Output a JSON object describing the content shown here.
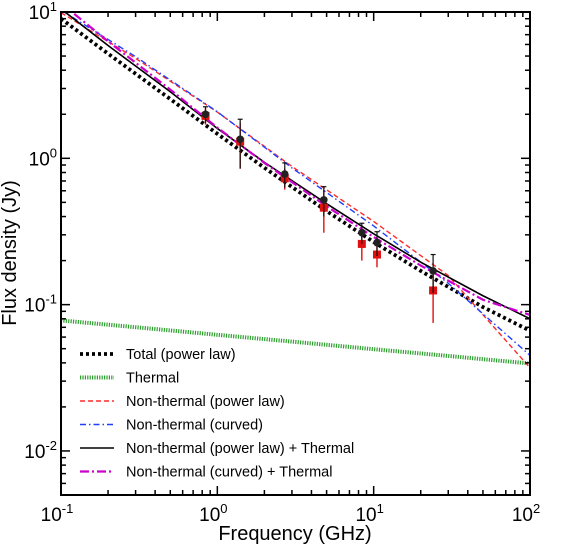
{
  "chart_data": {
    "type": "line",
    "xlabel": "Frequency (GHz)",
    "ylabel": "Flux density (Jy)",
    "x_scale": "log",
    "y_scale": "log",
    "xlim": [
      0.1,
      100
    ],
    "ylim": [
      0.005,
      10
    ],
    "x_ticks": [
      {
        "value": 0.1,
        "base": "10",
        "exp": "-1"
      },
      {
        "value": 1,
        "base": "10",
        "exp": "0"
      },
      {
        "value": 10,
        "base": "10",
        "exp": "1"
      },
      {
        "value": 100,
        "base": "10",
        "exp": "2"
      }
    ],
    "y_ticks": [
      {
        "value": 0.01,
        "base": "10",
        "exp": "-2"
      },
      {
        "value": 0.1,
        "base": "10",
        "exp": "-1"
      },
      {
        "value": 1,
        "base": "10",
        "exp": "0"
      },
      {
        "value": 10,
        "base": "10",
        "exp": "1"
      }
    ],
    "grid": false,
    "legend_position": "bottom-left",
    "series": [
      {
        "name": "Total (power law)",
        "color": "#000000",
        "style": "dotted-thick",
        "x": [
          0.1,
          0.2,
          0.5,
          1,
          2,
          5,
          10,
          20,
          50,
          100
        ],
        "y": [
          9.0,
          5.19,
          2.54,
          1.47,
          0.862,
          0.436,
          0.268,
          0.17,
          0.0963,
          0.0663
        ]
      },
      {
        "name": "Thermal",
        "color": "#2ca02c",
        "style": "dotted-green",
        "x": [
          0.1,
          0.3,
          1,
          3,
          10,
          30,
          100
        ],
        "y": [
          0.078,
          0.0701,
          0.0622,
          0.0559,
          0.0496,
          0.0446,
          0.0396
        ]
      },
      {
        "name": "Non-thermal (power law)",
        "color": "#ff2a2a",
        "style": "dashed",
        "x": [
          0.1,
          0.3,
          1,
          3,
          10,
          30,
          100
        ],
        "y": [
          9.9,
          4.82,
          2.07,
          0.88,
          0.37,
          0.158,
          0.037
        ]
      },
      {
        "name": "Non-thermal (curved)",
        "color": "#1f3fff",
        "style": "dashdot-fine",
        "x": [
          0.1,
          0.3,
          1,
          3,
          10,
          30,
          100
        ],
        "y": [
          10.3,
          4.95,
          2.08,
          0.86,
          0.345,
          0.14,
          0.045
        ]
      },
      {
        "name": "Non-thermal (power law) + Thermal",
        "color": "#000000",
        "style": "solid",
        "x": [
          0.1,
          0.2,
          0.5,
          1,
          2,
          5,
          10,
          20,
          50,
          100
        ],
        "y": [
          10.5,
          5.9,
          2.85,
          1.6,
          0.94,
          0.49,
          0.305,
          0.195,
          0.115,
          0.08
        ]
      },
      {
        "name": "Non-thermal (curved) + Thermal",
        "color": "#cc00cc",
        "style": "dashdot",
        "x": [
          0.1,
          0.2,
          0.5,
          1,
          2,
          5,
          10,
          20,
          50,
          100
        ],
        "y": [
          11.5,
          6.3,
          2.95,
          1.62,
          0.93,
          0.47,
          0.29,
          0.185,
          0.108,
          0.085
        ]
      }
    ],
    "points_black": [
      {
        "x": 0.84,
        "y": 2.0,
        "err": 0.25
      },
      {
        "x": 1.4,
        "y": 1.35,
        "err": 0.5
      },
      {
        "x": 2.7,
        "y": 0.78,
        "err": 0.15
      },
      {
        "x": 4.8,
        "y": 0.52,
        "err": 0.12
      },
      {
        "x": 8.4,
        "y": 0.31,
        "err": 0.05
      },
      {
        "x": 10.5,
        "y": 0.265,
        "err": 0.05
      },
      {
        "x": 24,
        "y": 0.17,
        "err": 0.05
      }
    ],
    "points_red": [
      {
        "x": 0.84,
        "y": 1.95,
        "err": 0.25
      },
      {
        "x": 1.4,
        "y": 1.3,
        "err": 0.45
      },
      {
        "x": 2.7,
        "y": 0.73,
        "err": 0.12
      },
      {
        "x": 4.8,
        "y": 0.46,
        "err": 0.15
      },
      {
        "x": 8.4,
        "y": 0.26,
        "err": 0.06
      },
      {
        "x": 10.5,
        "y": 0.22,
        "err": 0.04
      },
      {
        "x": 24,
        "y": 0.125,
        "err": 0.05
      }
    ]
  }
}
